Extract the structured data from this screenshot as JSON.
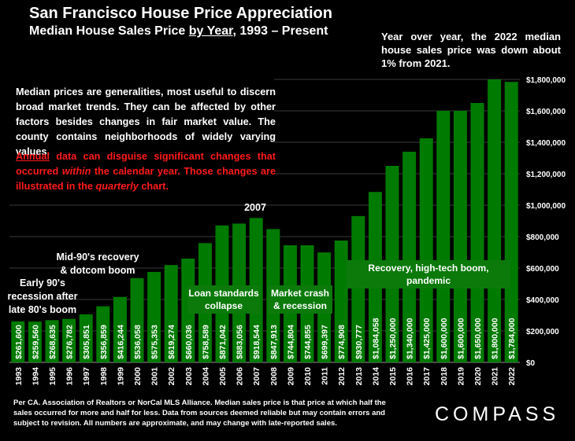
{
  "title": "San Francisco House Price Appreciation",
  "subtitle_pre": "Median House Sales Price ",
  "subtitle_underlined": "by Year",
  "subtitle_post": ", 1993 – Present",
  "callout": "Year over year, the 2022 median house sales price was down about 1% from 2021.",
  "note_box": {
    "text1": "Median prices are generalities, most useful to discern broad market trends. They can be affected by other factors besides changes in fair market value. The county contains neighborhoods of widely varying values.",
    "text2_a": "Annual",
    "text2_b": " data can disguise significant changes that occurred ",
    "text2_c": "within",
    "text2_d": " the calendar year. Those changes are illustrated in the ",
    "text2_e": "quarterly",
    "text2_f": " chart."
  },
  "annotations": {
    "early90s": "Early 90's recession after late 80's boom",
    "mid90s": "Mid-90's recovery & dotcom boom",
    "y2007": "2007",
    "loan": "Loan standards collapse",
    "crash": "Market crash & recession",
    "recovery": "Recovery, high-tech boom, pandemic"
  },
  "footer": "Per CA. Association of Realtors or NorCal MLS Alliance. Median sales price is that price at which half the sales occurred for more and half for less. Data from sources deemed reliable but may contain errors and subject to revision. All numbers are approximate, and may change with late-reported sales.",
  "logo": "COMPASS",
  "colors": {
    "bar": "#007a00",
    "bar_label": "#ffffff",
    "background": "#000000",
    "note_red": "#ff1a1a",
    "grid": "#3a3a3a"
  },
  "chart_data": {
    "type": "bar",
    "title": "San Francisco House Price Appreciation",
    "subtitle": "Median House Sales Price by Year, 1993 – Present",
    "categories": [
      "1993",
      "1994",
      "1995",
      "1996",
      "1997",
      "1998",
      "1999",
      "2000",
      "2001",
      "2002",
      "2003",
      "2004",
      "2005",
      "2006",
      "2007",
      "2008",
      "2009",
      "2010",
      "2011",
      "2012",
      "2013",
      "2014",
      "2015",
      "2016",
      "2017",
      "2018",
      "2019",
      "2020",
      "2021",
      "2022"
    ],
    "values": [
      261600,
      259560,
      268635,
      276782,
      305851,
      356859,
      416244,
      536058,
      575353,
      619274,
      660036,
      758589,
      871042,
      883056,
      918544,
      847913,
      744804,
      744855,
      699397,
      774908,
      930777,
      1084058,
      1250000,
      1340000,
      1425000,
      1600000,
      1600000,
      1650000,
      1800000,
      1784000
    ],
    "labels": [
      "$261,600",
      "$259,560",
      "$268,635",
      "$276,782",
      "$305,851",
      "$356,859",
      "$416,244",
      "$536,058",
      "$575,353",
      "$619,274",
      "$660,036",
      "$758,589",
      "$871,042",
      "$883,056",
      "$918,544",
      "$847,913",
      "$744,804",
      "$744,855",
      "$699,397",
      "$774,908",
      "$930,777",
      "$1,084,058",
      "$1,250,000",
      "$1,340,000",
      "$1,425,000",
      "$1,600,000",
      "$1,600,000",
      "$1,650,000",
      "$1,800,000",
      "$1,784,000"
    ],
    "yticks": [
      0,
      200000,
      400000,
      600000,
      800000,
      1000000,
      1200000,
      1400000,
      1600000,
      1800000
    ],
    "ytick_labels": [
      "$0",
      "$200,000",
      "$400,000",
      "$600,000",
      "$800,000",
      "$1,000,000",
      "$1,200,000",
      "$1,400,000",
      "$1,600,000",
      "$1,800,000"
    ],
    "ylim": [
      0,
      1800000
    ],
    "grid": true,
    "yaxis_side": "right"
  }
}
